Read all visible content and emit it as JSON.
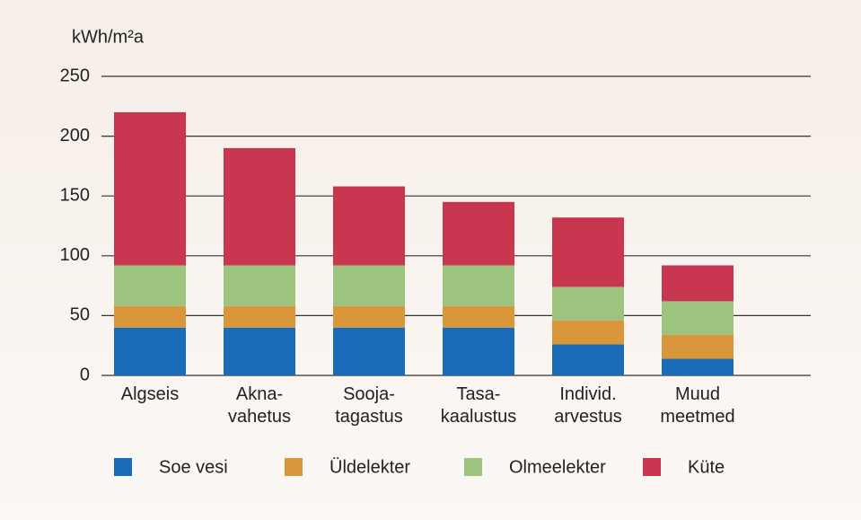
{
  "chart_data": {
    "type": "stacked_bar",
    "y_label": "kWh/m²a",
    "categories": [
      "Algseis",
      "Akna-\nvahetus",
      "Sooja-\ntagastus",
      "Tasa-\nkaalustus",
      "Individ.\narvestus",
      "Muud\nmeetmed"
    ],
    "series": [
      {
        "name": "Soe vesi",
        "color": "#1a6bb8",
        "values": [
          40,
          40,
          40,
          40,
          26,
          14
        ]
      },
      {
        "name": "Üldelekter",
        "color": "#d9963a",
        "values": [
          18,
          18,
          18,
          18,
          20,
          20
        ]
      },
      {
        "name": "Olmeelekter",
        "color": "#9dc47e",
        "values": [
          34,
          34,
          34,
          34,
          28,
          28
        ]
      },
      {
        "name": "Küte",
        "color": "#c8374f",
        "values": [
          128,
          98,
          66,
          53,
          58,
          30
        ]
      }
    ],
    "ylim": [
      0,
      250
    ],
    "yticks": [
      0,
      50,
      100,
      150,
      200,
      250
    ],
    "grid": true
  }
}
